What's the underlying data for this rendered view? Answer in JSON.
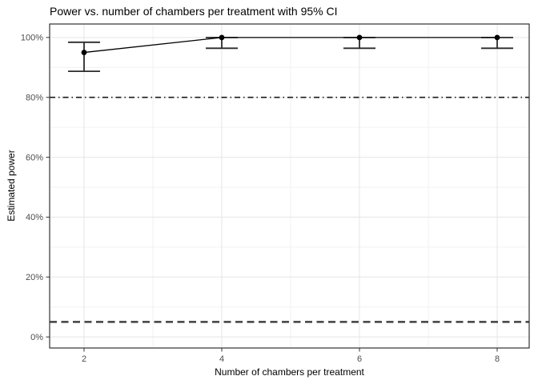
{
  "figure": {
    "title": "Power vs. number of chambers per treatment with 95% CI"
  },
  "chart_data": {
    "type": "line",
    "title": "Power vs. number of chambers per treatment with 95% CI",
    "xlabel": "Number of chambers per treatment",
    "ylabel": "Estimated power",
    "x": [
      2,
      4,
      6,
      8
    ],
    "series": [
      {
        "name": "Estimated power",
        "values": [
          0.95,
          1.0,
          1.0,
          1.0
        ],
        "ci_lower": [
          0.887,
          0.964,
          0.964,
          0.964
        ],
        "ci_upper": [
          0.984,
          1.0,
          1.0,
          1.0
        ]
      }
    ],
    "reference_lines": [
      {
        "y": 0.8,
        "style": "dashdot",
        "color": "#1a1a1a",
        "width": 1.7
      },
      {
        "y": 0.05,
        "style": "dashed",
        "color": "#404040",
        "width": 2.5
      }
    ],
    "x_ticks": {
      "values": [
        2,
        4,
        6,
        8
      ],
      "labels": [
        "2",
        "4",
        "6",
        "8"
      ]
    },
    "y_ticks": {
      "values": [
        0,
        0.2,
        0.4,
        0.6,
        0.8,
        1.0
      ],
      "labels": [
        "0%",
        "20%",
        "40%",
        "60%",
        "80%",
        "100%"
      ]
    },
    "x_minor_ticks": [
      3,
      5,
      7
    ],
    "y_minor_ticks": [
      0.1,
      0.3,
      0.5,
      0.7,
      0.9
    ],
    "x_range": [
      1.5,
      8.465
    ],
    "y_range": [
      -0.037,
      1.045
    ],
    "grid": true,
    "legend": "none",
    "colors": {
      "point": "#000000",
      "line": "#000000",
      "error_bar": "#2b2b2b",
      "grid_major": "#e5e5e5",
      "grid_minor": "#f2f2f2",
      "panel_border": "#333333",
      "tick": "#333333",
      "tick_label": "#4d4d4d",
      "panel_background": "#ffffff"
    }
  }
}
